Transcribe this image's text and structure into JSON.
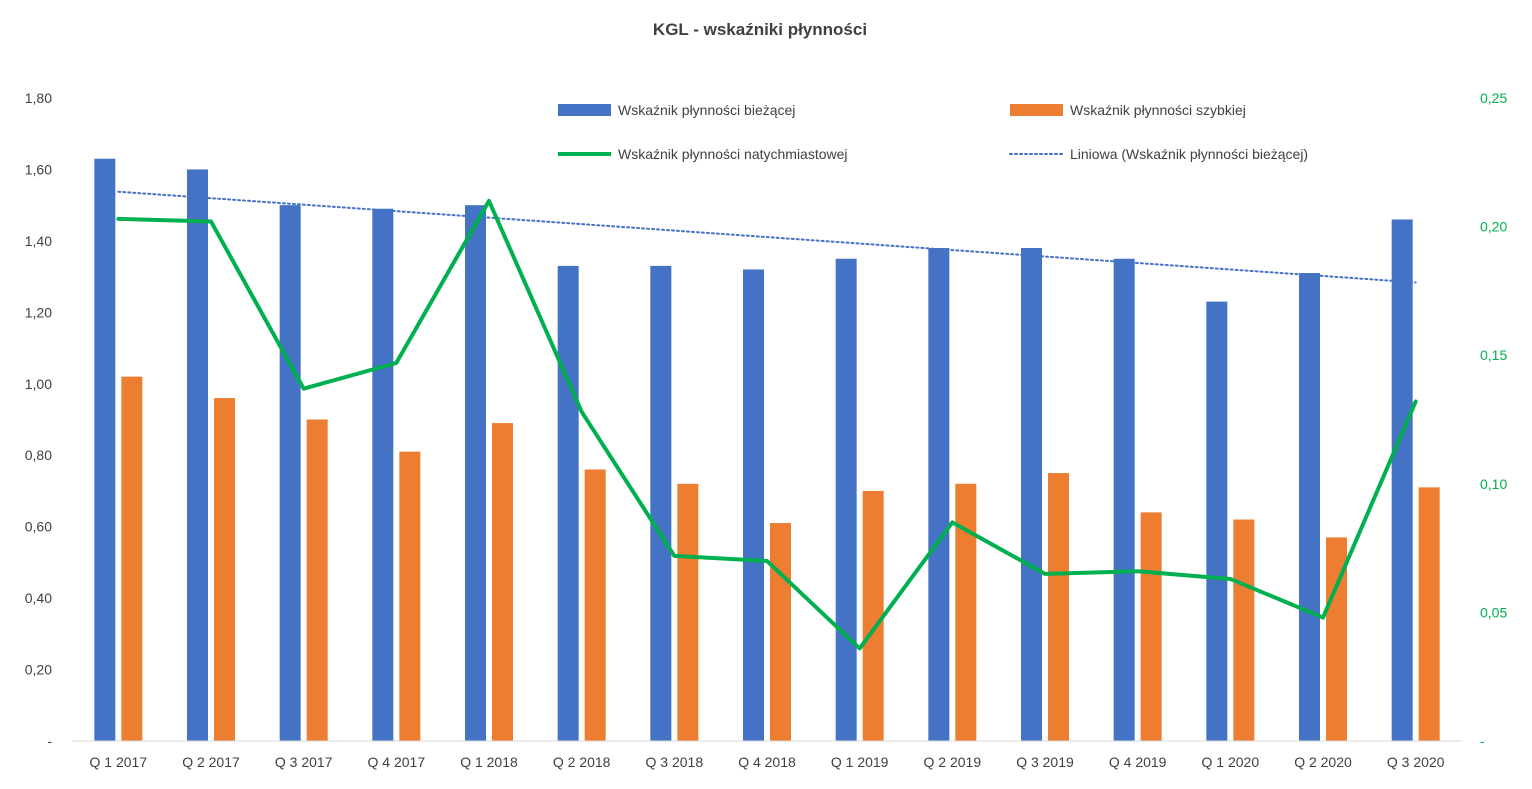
{
  "chart_data": {
    "type": "bar",
    "title": "KGL - wskaźniki  płynności",
    "categories": [
      "Q 1 2017",
      "Q 2 2017",
      "Q 3 2017",
      "Q 4 2017",
      "Q 1 2018",
      "Q 2 2018",
      "Q 3 2018",
      "Q 4 2018",
      "Q 1 2019",
      "Q 2 2019",
      "Q 3 2019",
      "Q 4 2019",
      "Q 1 2020",
      "Q 2 2020",
      "Q 3 2020"
    ],
    "y_left": {
      "ylim": [
        0,
        1.8
      ],
      "ticks": [
        0,
        0.2,
        0.4,
        0.6,
        0.8,
        1.0,
        1.2,
        1.4,
        1.6,
        1.8
      ],
      "tick_labels": [
        "-",
        "0,20",
        "0,40",
        "0,60",
        "0,80",
        "1,00",
        "1,20",
        "1,40",
        "1,60",
        "1,80"
      ]
    },
    "y_right": {
      "ylim": [
        0,
        0.25
      ],
      "ticks": [
        0,
        0.05,
        0.1,
        0.15,
        0.2,
        0.25
      ],
      "tick_labels": [
        "-",
        "0,05",
        "0,10",
        "0,15",
        "0,20",
        "0,25"
      ]
    },
    "series": [
      {
        "name": "Wskaźnik płynności bieżącej",
        "kind": "bar",
        "axis": "left",
        "color": "#4472C4",
        "values": [
          1.63,
          1.6,
          1.5,
          1.49,
          1.5,
          1.33,
          1.33,
          1.32,
          1.35,
          1.38,
          1.38,
          1.35,
          1.23,
          1.31,
          1.46
        ]
      },
      {
        "name": "Wskaźnik płynności szybkiej",
        "kind": "bar",
        "axis": "left",
        "color": "#ED7D31",
        "values": [
          1.02,
          0.96,
          0.9,
          0.81,
          0.89,
          0.76,
          0.72,
          0.61,
          0.7,
          0.72,
          0.75,
          0.64,
          0.62,
          0.57,
          0.71
        ]
      },
      {
        "name": "Wskaźnik płynności natychmiastowej",
        "kind": "line",
        "axis": "right",
        "color": "#00B050",
        "values": [
          0.203,
          0.202,
          0.137,
          0.147,
          0.21,
          0.128,
          0.072,
          0.07,
          0.036,
          0.085,
          0.065,
          0.066,
          0.063,
          0.048,
          0.132
        ]
      },
      {
        "name": "Liniowa (Wskaźnik płynności bieżącej)",
        "kind": "trendline",
        "axis": "left",
        "color": "#4472C4",
        "of": "Wskaźnik płynności bieżącej"
      }
    ],
    "legend_position": "top",
    "grid": false
  }
}
